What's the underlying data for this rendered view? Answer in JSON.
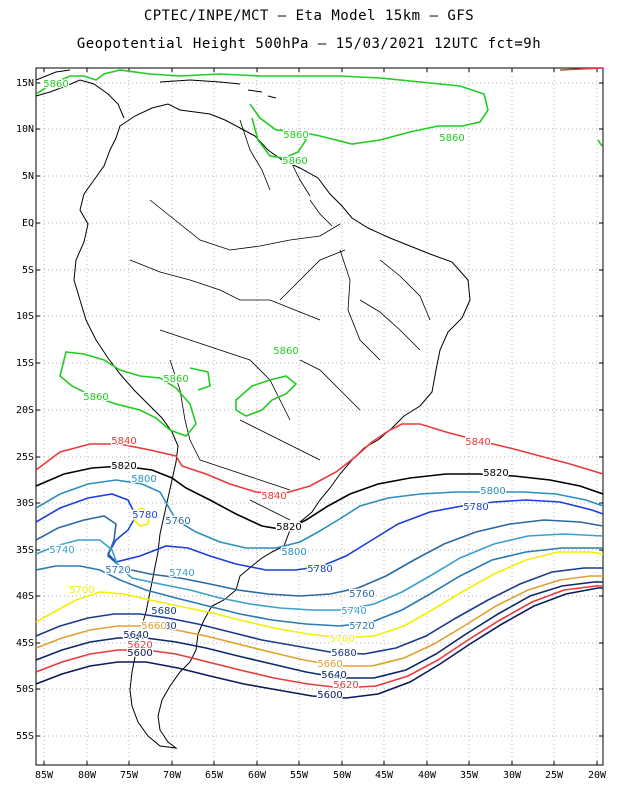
{
  "title_line1": "CPTEC/INPE/MCT –  Eta Model 15km – GFS",
  "title_line2": "Geopotential Height 500hPa – 15/03/2021 12UTC fct=9h",
  "lat_labels": [
    "15N",
    "10N",
    "5N",
    "EQ",
    "5S",
    "10S",
    "15S",
    "20S",
    "25S",
    "30S",
    "35S",
    "40S",
    "45S",
    "50S",
    "55S"
  ],
  "lon_labels": [
    "85W",
    "80W",
    "75W",
    "70W",
    "65W",
    "60W",
    "55W",
    "50W",
    "45W",
    "40W",
    "35W",
    "30W",
    "25W",
    "20W"
  ],
  "contour_labels": [
    "5860",
    "5860",
    "5860",
    "5860",
    "5860",
    "5860",
    "5860",
    "5840",
    "5840",
    "5840",
    "5820",
    "5820",
    "5820",
    "5800",
    "5800",
    "5800",
    "5780",
    "5780",
    "5780",
    "5760",
    "5760",
    "5740",
    "5740",
    "5740",
    "5720",
    "5720",
    "5700",
    "5700",
    "5680",
    "5680",
    "5680",
    "5660",
    "5660",
    "5640",
    "5640",
    "5620",
    "5620",
    "5600",
    "5600"
  ],
  "colors": {
    "5860": "#22cc22",
    "5840": "#e83a3a",
    "5820": "#000000",
    "5800": "#2a8fb8",
    "5780": "#1a3fe0",
    "5760": "#2a6aa0",
    "5740": "#3aa0c8",
    "5720": "#2a7ab0",
    "5700": "#f0f000",
    "5680": "#1a3a8a",
    "5660": "#e0a030",
    "5640": "#0a2a6a",
    "5620": "#e83a3a",
    "5600": "#0a1a5a"
  }
}
